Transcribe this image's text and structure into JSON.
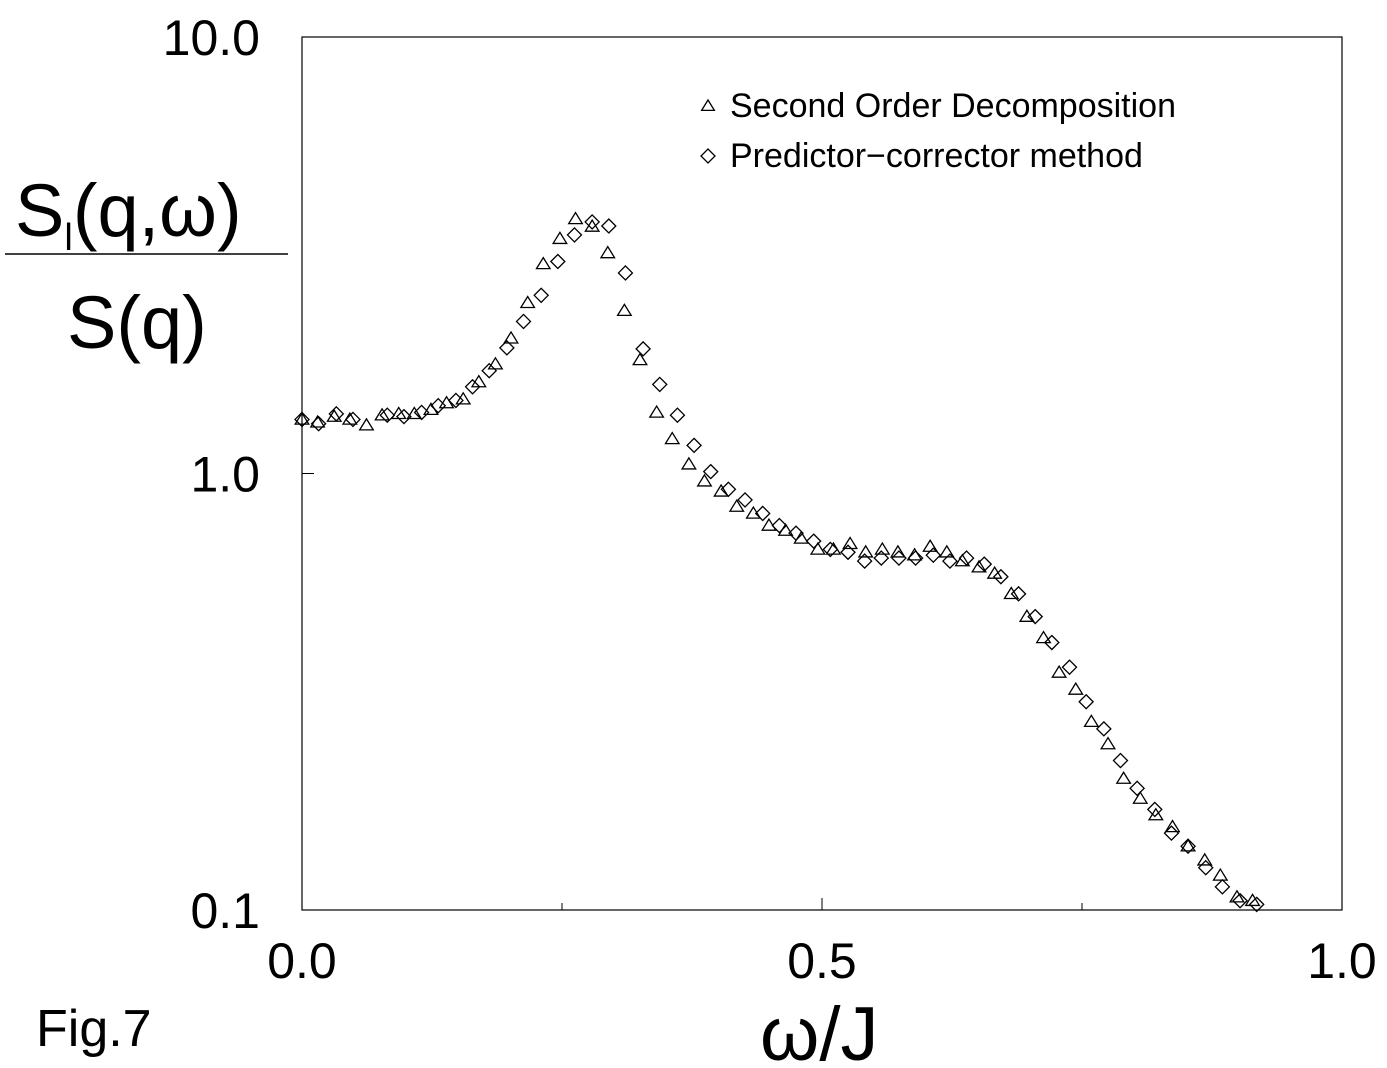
{
  "chart_data": {
    "type": "scatter",
    "x_scale": "linear",
    "y_scale": "log",
    "xlim": [
      0.0,
      1.0
    ],
    "ylim": [
      0.1,
      10.0
    ],
    "x_ticks": [
      "0.0",
      "0.5",
      "1.0"
    ],
    "y_ticks": [
      "10.0",
      "1.0",
      "0.1"
    ],
    "xlabel": "ω/J",
    "ylabel_numerator_base": "S",
    "ylabel_numerator_sub": "l",
    "ylabel_numerator_rest": "(q,ω)",
    "ylabel_denominator": "S(q)",
    "grid": false,
    "legend_position": "top-right",
    "series": [
      {
        "name": "Second Order Decomposition",
        "marker": "triangle",
        "x": [
          0.0,
          0.015,
          0.031,
          0.046,
          0.062,
          0.077,
          0.093,
          0.108,
          0.124,
          0.139,
          0.155,
          0.17,
          0.186,
          0.201,
          0.217,
          0.232,
          0.248,
          0.263,
          0.279,
          0.294,
          0.31,
          0.325,
          0.341,
          0.356,
          0.372,
          0.387,
          0.403,
          0.418,
          0.434,
          0.449,
          0.465,
          0.48,
          0.496,
          0.511,
          0.527,
          0.542,
          0.558,
          0.573,
          0.589,
          0.604,
          0.62,
          0.635,
          0.651,
          0.666,
          0.682,
          0.697,
          0.713,
          0.728,
          0.744,
          0.759,
          0.775,
          0.79,
          0.806,
          0.821,
          0.837,
          0.852,
          0.868,
          0.883,
          0.899,
          0.914
        ],
        "y": [
          1.33,
          1.31,
          1.35,
          1.33,
          1.29,
          1.36,
          1.37,
          1.37,
          1.4,
          1.45,
          1.48,
          1.62,
          1.78,
          2.04,
          2.46,
          3.02,
          3.45,
          3.83,
          3.68,
          3.2,
          2.36,
          1.82,
          1.38,
          1.2,
          1.05,
          0.96,
          0.91,
          0.84,
          0.81,
          0.76,
          0.74,
          0.71,
          0.67,
          0.67,
          0.69,
          0.66,
          0.67,
          0.66,
          0.65,
          0.68,
          0.66,
          0.63,
          0.61,
          0.59,
          0.53,
          0.47,
          0.42,
          0.35,
          0.32,
          0.27,
          0.24,
          0.2,
          0.18,
          0.165,
          0.155,
          0.14,
          0.13,
          0.12,
          0.107,
          0.105
        ]
      },
      {
        "name": "Predictor−corrector method",
        "marker": "diamond",
        "x": [
          0.0,
          0.016,
          0.033,
          0.049,
          0.082,
          0.098,
          0.115,
          0.131,
          0.148,
          0.164,
          0.18,
          0.197,
          0.213,
          0.23,
          0.246,
          0.262,
          0.279,
          0.295,
          0.311,
          0.328,
          0.344,
          0.361,
          0.377,
          0.393,
          0.41,
          0.426,
          0.443,
          0.459,
          0.475,
          0.492,
          0.508,
          0.525,
          0.541,
          0.557,
          0.574,
          0.59,
          0.607,
          0.623,
          0.639,
          0.656,
          0.672,
          0.689,
          0.705,
          0.721,
          0.738,
          0.754,
          0.771,
          0.787,
          0.803,
          0.82,
          0.836,
          0.852,
          0.869,
          0.885,
          0.902,
          0.918
        ],
        "y": [
          1.33,
          1.3,
          1.37,
          1.33,
          1.36,
          1.35,
          1.38,
          1.43,
          1.47,
          1.58,
          1.72,
          1.94,
          2.23,
          2.56,
          3.06,
          3.52,
          3.77,
          3.69,
          2.88,
          1.93,
          1.6,
          1.36,
          1.16,
          1.01,
          0.92,
          0.87,
          0.81,
          0.76,
          0.73,
          0.7,
          0.67,
          0.66,
          0.63,
          0.64,
          0.64,
          0.64,
          0.65,
          0.63,
          0.64,
          0.62,
          0.58,
          0.53,
          0.47,
          0.41,
          0.36,
          0.3,
          0.26,
          0.22,
          0.19,
          0.17,
          0.15,
          0.14,
          0.125,
          0.113,
          0.105,
          0.103
        ]
      }
    ]
  },
  "figure_caption": "Fig.7"
}
